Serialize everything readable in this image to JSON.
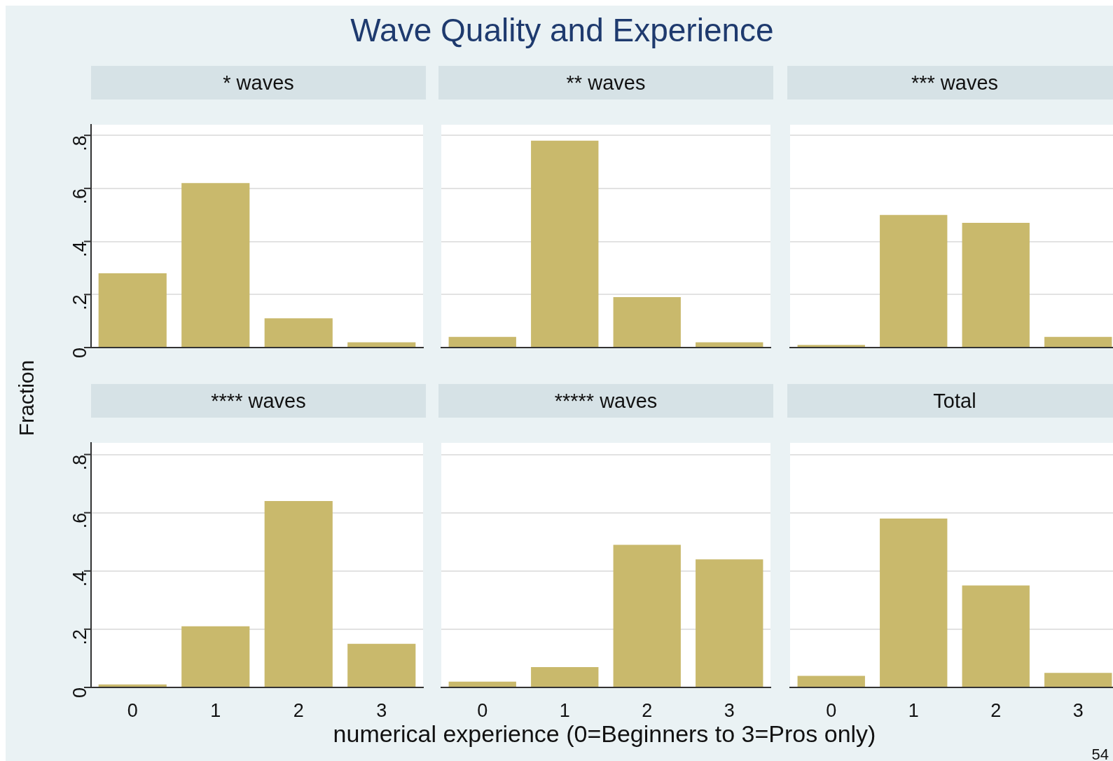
{
  "chart_data": [
    {
      "type": "bar",
      "title": "* waves",
      "annotations": [
        "Wave Quality and Experience"
      ],
      "ylabel": "Fraction",
      "categories": [
        "0",
        "1",
        "2",
        "3"
      ],
      "values": [
        0.28,
        0.62,
        0.11,
        0.02
      ],
      "color": "#c9b96c",
      "ylim": [
        0,
        0.84
      ],
      "yticks": [
        0,
        {
          "value": 0.2,
          "label": ".2"
        },
        {
          "value": 0.4,
          "label": ".4"
        },
        {
          "value": 0.6,
          "label": ".6"
        },
        {
          "value": 0.8,
          "label": ".8"
        }
      ],
      "grid": "y",
      "tick_labels": "y"
    },
    {
      "type": "bar",
      "title": "** waves",
      "categories": [
        "0",
        "1",
        "2",
        "3"
      ],
      "values": [
        0.04,
        0.78,
        0.19,
        0.02
      ],
      "color": "#c9b96c",
      "ylim": [
        0,
        0.84
      ],
      "yticks": [
        {
          "value": 0,
          "label": null
        },
        {
          "value": 0.2,
          "label": null
        },
        {
          "value": 0.4,
          "label": null
        },
        {
          "value": 0.6,
          "label": null
        },
        {
          "value": 0.8,
          "label": null
        }
      ],
      "grid": "y",
      "tick_labels": false
    },
    {
      "type": "bar",
      "title": "*** waves",
      "categories": [
        "0",
        "1",
        "2",
        "3"
      ],
      "values": [
        0.01,
        0.5,
        0.47,
        0.04
      ],
      "color": "#c9b96c",
      "ylim": [
        0,
        0.84
      ],
      "yticks": [
        {
          "value": 0,
          "label": null
        },
        {
          "value": 0.2,
          "label": null
        },
        {
          "value": 0.4,
          "label": null
        },
        {
          "value": 0.6,
          "label": null
        },
        {
          "value": 0.8,
          "label": null
        }
      ],
      "grid": "y",
      "tick_labels": false
    },
    {
      "type": "bar",
      "title": "**** waves",
      "categories": [
        "0",
        "1",
        "2",
        "3"
      ],
      "values": [
        0.01,
        0.21,
        0.64,
        0.15
      ],
      "color": "#c9b96c",
      "ylim": [
        0,
        0.84
      ],
      "yticks": [
        0,
        {
          "value": 0.2,
          "label": ".2"
        },
        {
          "value": 0.4,
          "label": ".4"
        },
        {
          "value": 0.6,
          "label": ".6"
        },
        {
          "value": 0.8,
          "label": ".8"
        }
      ],
      "grid": "y"
    },
    {
      "type": "bar",
      "title": "***** waves",
      "xlabel": "numerical experience (0=Beginners to 3=Pros only)",
      "categories": [
        "0",
        "1",
        "2",
        "3"
      ],
      "values": [
        0.02,
        0.07,
        0.49,
        0.44
      ],
      "color": "#c9b96c",
      "ylim": [
        0,
        0.84
      ],
      "yticks": [
        {
          "value": 0,
          "label": null
        },
        {
          "value": 0.2,
          "label": null
        },
        {
          "value": 0.4,
          "label": null
        },
        {
          "value": 0.6,
          "label": null
        },
        {
          "value": 0.8,
          "label": null
        }
      ],
      "grid": "y",
      "tick_labels": "x"
    },
    {
      "type": "bar",
      "title": "Total",
      "annotations": [
        "54"
      ],
      "categories": [
        "0",
        "1",
        "2",
        "3"
      ],
      "values": [
        0.04,
        0.58,
        0.35,
        0.05
      ],
      "color": "#c9b96c",
      "ylim": [
        0,
        0.84
      ],
      "yticks": [
        {
          "value": 0,
          "label": null
        },
        {
          "value": 0.2,
          "label": null
        },
        {
          "value": 0.4,
          "label": null
        },
        {
          "value": 0.6,
          "label": null
        },
        {
          "value": 0.8,
          "label": null
        }
      ],
      "grid": "y",
      "tick_labels": "x"
    }
  ]
}
